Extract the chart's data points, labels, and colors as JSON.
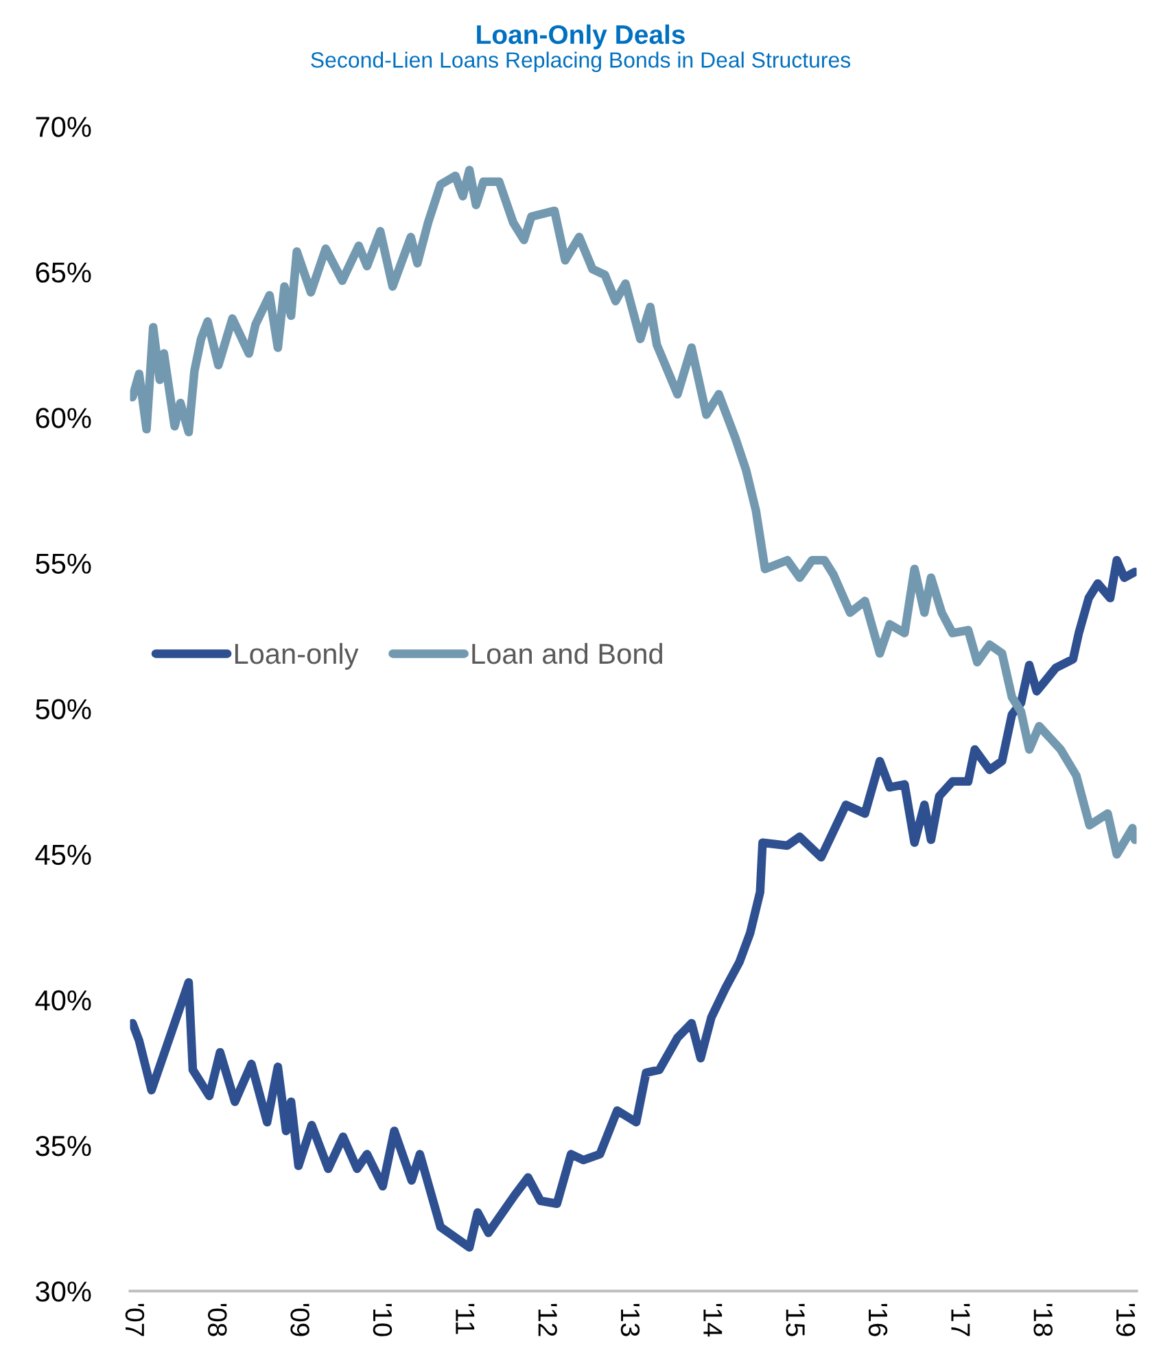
{
  "chart_data": {
    "type": "line",
    "title": "Loan-Only Deals",
    "subtitle": "Second-Lien Loans Replacing Bonds in Deal Structures",
    "xlim": [
      2006.97,
      2019.16
    ],
    "xticks": [
      {
        "value": 2007,
        "label": "'07"
      },
      {
        "value": 2008,
        "label": "'08"
      },
      {
        "value": 2009,
        "label": "'09"
      },
      {
        "value": 2010,
        "label": "'10"
      },
      {
        "value": 2011,
        "label": "'11"
      },
      {
        "value": 2012,
        "label": "'12"
      },
      {
        "value": 2013,
        "label": "'13"
      },
      {
        "value": 2014,
        "label": "'14"
      },
      {
        "value": 2015,
        "label": "'15"
      },
      {
        "value": 2016,
        "label": "'16"
      },
      {
        "value": 2017,
        "label": "'17"
      },
      {
        "value": 2018,
        "label": "'18"
      },
      {
        "value": 2019,
        "label": "'19"
      }
    ],
    "ylim": [
      30,
      70
    ],
    "yticks": [
      {
        "value": 30,
        "label": "30%"
      },
      {
        "value": 35,
        "label": "35%"
      },
      {
        "value": 40,
        "label": "40%"
      },
      {
        "value": 45,
        "label": "45%"
      },
      {
        "value": 50,
        "label": "50%"
      },
      {
        "value": 55,
        "label": "55%"
      },
      {
        "value": 60,
        "label": "60%"
      },
      {
        "value": 65,
        "label": "65%"
      },
      {
        "value": 70,
        "label": "70%"
      }
    ],
    "grid": false,
    "legend": "left",
    "marker": "none",
    "line_style": "solid",
    "series": [
      {
        "name": "Loan-only",
        "color": "#2e5090",
        "x": [
          2007.0,
          2007.08,
          2007.23,
          2007.68,
          2007.73,
          2007.93,
          2008.06,
          2008.24,
          2008.44,
          2008.63,
          2008.76,
          2008.86,
          2008.92,
          2009.01,
          2009.17,
          2009.37,
          2009.55,
          2009.72,
          2009.84,
          2010.03,
          2010.17,
          2010.38,
          2010.48,
          2010.73,
          2010.93,
          2011.08,
          2011.18,
          2011.31,
          2011.63,
          2011.79,
          2011.94,
          2012.14,
          2012.31,
          2012.46,
          2012.66,
          2012.87,
          2013.1,
          2013.22,
          2013.38,
          2013.6,
          2013.77,
          2013.88,
          2014.01,
          2014.18,
          2014.35,
          2014.48,
          2014.6,
          2014.63,
          2014.93,
          2015.08,
          2015.34,
          2015.64,
          2015.87,
          2016.05,
          2016.17,
          2016.35,
          2016.47,
          2016.59,
          2016.67,
          2016.77,
          2016.93,
          2017.12,
          2017.2,
          2017.38,
          2017.53,
          2017.65,
          2017.76,
          2017.86,
          2017.95,
          2018.18,
          2018.39,
          2018.46,
          2018.58,
          2018.69,
          2018.84,
          2018.92,
          2019.01,
          2019.14
        ],
        "values": [
          39.2,
          38.6,
          36.9,
          40.6,
          37.6,
          36.7,
          38.2,
          36.5,
          37.8,
          35.8,
          37.7,
          35.5,
          36.5,
          34.3,
          35.7,
          34.2,
          35.3,
          34.2,
          34.7,
          33.6,
          35.5,
          33.8,
          34.7,
          32.2,
          31.8,
          31.5,
          32.7,
          32.0,
          33.3,
          33.9,
          33.1,
          33.0,
          34.7,
          34.5,
          34.7,
          36.2,
          35.8,
          37.5,
          37.6,
          38.7,
          39.2,
          38.0,
          39.4,
          40.4,
          41.3,
          42.3,
          43.7,
          45.4,
          45.3,
          45.6,
          44.9,
          46.7,
          46.4,
          48.2,
          47.3,
          47.4,
          45.4,
          46.7,
          45.5,
          47.0,
          47.5,
          47.5,
          48.6,
          47.9,
          48.2,
          49.8,
          50.2,
          51.5,
          50.6,
          51.4,
          51.7,
          52.6,
          53.8,
          54.3,
          53.8,
          55.1,
          54.5,
          54.7
        ]
      },
      {
        "name": "Loan and Bond",
        "color": "#7399b0",
        "x": [
          2007.0,
          2007.08,
          2007.17,
          2007.25,
          2007.33,
          2007.38,
          2007.51,
          2007.58,
          2007.68,
          2007.75,
          2007.83,
          2007.91,
          2008.04,
          2008.21,
          2008.41,
          2008.49,
          2008.66,
          2008.76,
          2008.84,
          2008.92,
          2008.99,
          2009.16,
          2009.34,
          2009.54,
          2009.74,
          2009.84,
          2010.0,
          2010.15,
          2010.37,
          2010.45,
          2010.58,
          2010.73,
          2010.91,
          2011.0,
          2011.08,
          2011.16,
          2011.25,
          2011.44,
          2011.61,
          2011.74,
          2011.83,
          2012.11,
          2012.24,
          2012.41,
          2012.57,
          2012.72,
          2012.85,
          2012.97,
          2013.15,
          2013.27,
          2013.35,
          2013.6,
          2013.77,
          2013.95,
          2014.1,
          2014.3,
          2014.43,
          2014.55,
          2014.66,
          2014.93,
          2015.08,
          2015.23,
          2015.38,
          2015.49,
          2015.69,
          2015.87,
          2016.05,
          2016.17,
          2016.35,
          2016.47,
          2016.59,
          2016.67,
          2016.8,
          2016.93,
          2017.12,
          2017.23,
          2017.38,
          2017.53,
          2017.65,
          2017.76,
          2017.86,
          2017.98,
          2018.24,
          2018.43,
          2018.59,
          2018.81,
          2018.92,
          2019.11,
          2019.14
        ],
        "values": [
          60.7,
          61.5,
          59.6,
          63.1,
          61.3,
          62.2,
          59.7,
          60.5,
          59.5,
          61.6,
          62.7,
          63.3,
          61.8,
          63.4,
          62.2,
          63.2,
          64.2,
          62.4,
          64.5,
          63.5,
          65.7,
          64.3,
          65.8,
          64.7,
          65.9,
          65.2,
          66.4,
          64.5,
          66.2,
          65.3,
          66.7,
          68.0,
          68.3,
          67.6,
          68.5,
          67.3,
          68.1,
          68.1,
          66.7,
          66.1,
          66.9,
          67.1,
          65.4,
          66.2,
          65.1,
          64.9,
          64.0,
          64.6,
          62.7,
          63.8,
          62.5,
          60.8,
          62.4,
          60.1,
          60.8,
          59.3,
          58.2,
          56.8,
          54.8,
          55.1,
          54.5,
          55.1,
          55.1,
          54.6,
          53.3,
          53.7,
          51.9,
          52.9,
          52.6,
          54.8,
          53.3,
          54.5,
          53.3,
          52.6,
          52.7,
          51.6,
          52.2,
          51.9,
          50.4,
          49.9,
          48.6,
          49.4,
          48.6,
          47.7,
          46.0,
          46.4,
          45.0,
          45.9,
          45.5
        ]
      }
    ]
  }
}
